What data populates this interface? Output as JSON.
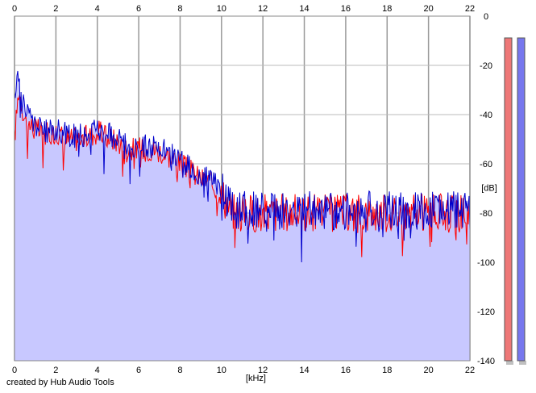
{
  "chart_data": {
    "type": "area",
    "title": "",
    "xlabel": "[kHz]",
    "ylabel": "[dB]",
    "xlim": [
      0,
      22
    ],
    "ylim": [
      -140,
      0
    ],
    "x_ticks": [
      "0",
      "2",
      "4",
      "6",
      "8",
      "10",
      "12",
      "14",
      "16",
      "18",
      "20",
      "22"
    ],
    "y_ticks": [
      "0",
      "-20",
      "-40",
      "-60",
      "-80",
      "-100",
      "-120",
      "-140"
    ],
    "grid": true,
    "series": [
      {
        "color": "#ff0000",
        "x": [
          0,
          0.2,
          0.5,
          1,
          1.5,
          2,
          2.5,
          3,
          3.5,
          4,
          4.5,
          5,
          5.5,
          6,
          6.5,
          7,
          7.5,
          8,
          8.5,
          9,
          9.5,
          10,
          10.5,
          11,
          12,
          13,
          14,
          15,
          16,
          17,
          18,
          19,
          20,
          21,
          22
        ],
        "y": [
          -50,
          -30,
          -42,
          -46,
          -48,
          -47,
          -50,
          -50,
          -49,
          -47,
          -49,
          -51,
          -54,
          -54,
          -54,
          -55,
          -57,
          -60,
          -63,
          -66,
          -68,
          -72,
          -79,
          -80,
          -80,
          -80,
          -80,
          -80,
          -80,
          -80,
          -80,
          -80,
          -80,
          -80,
          -80
        ]
      },
      {
        "color": "#0000cc",
        "x": [
          0,
          0.2,
          0.5,
          1,
          1.5,
          2,
          2.5,
          3,
          3.5,
          4,
          4.5,
          5,
          5.5,
          6,
          6.5,
          7,
          7.5,
          8,
          8.5,
          9,
          9.5,
          10,
          10.5,
          11,
          12,
          13,
          14,
          15,
          16,
          17,
          18,
          19,
          20,
          21,
          22
        ],
        "y": [
          -35,
          -22,
          -38,
          -44,
          -47,
          -46,
          -48,
          -49,
          -48,
          -46,
          -48,
          -50,
          -52,
          -53,
          -53,
          -54,
          -56,
          -58,
          -62,
          -65,
          -67,
          -71,
          -78,
          -79,
          -79,
          -79,
          -79,
          -79,
          -79,
          -79,
          -79,
          -79,
          -79,
          -79,
          -79
        ]
      }
    ],
    "fill_color": "#c8c8ff",
    "level_meters": [
      {
        "color": "#ee7777",
        "level": 1.0
      },
      {
        "color": "#7777ee",
        "level": 1.0
      }
    ]
  },
  "footer": {
    "credit": "created by Hub Audio Tools"
  }
}
